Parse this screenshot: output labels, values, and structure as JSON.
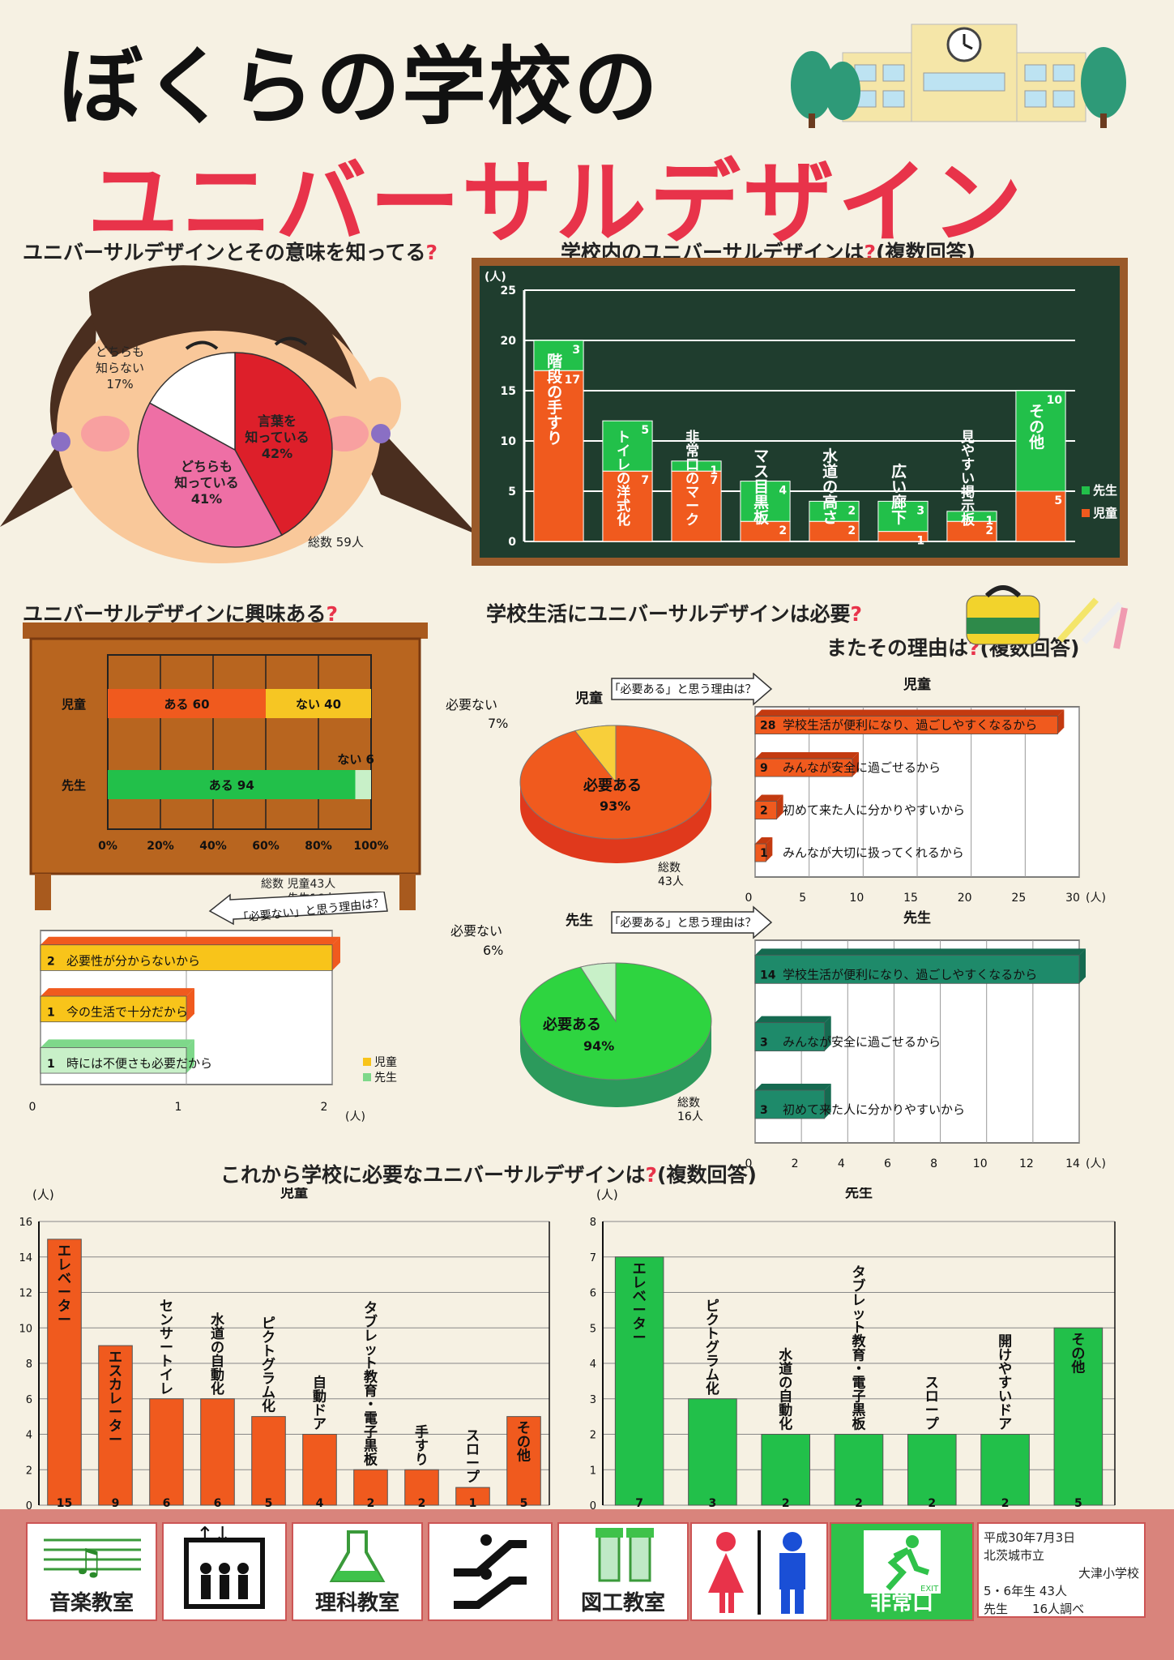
{
  "title": {
    "line1": "ぼくらの学校の",
    "line2": "ユニバーサルデザイン"
  },
  "colors": {
    "jido": "#f05a1e",
    "sensei": "#22c04a",
    "red": "#e8334a",
    "board": "#1f3d2e"
  },
  "q1": {
    "title": "ユニバーサルデザインとその意味を知ってる",
    "qmark": "?",
    "total": "総数 59人",
    "chart_data": {
      "type": "pie",
      "categories": [
        "言葉を知っている",
        "どちらも知っている",
        "どちらも知らない"
      ],
      "values": [
        42,
        41,
        17
      ],
      "labels": [
        "言葉を知っている 42%",
        "どちらも知っている 41%",
        "どちらも知らない 17%"
      ]
    },
    "slice_labels": {
      "a": "言葉を",
      "a2": "知っている",
      "a3": "42%",
      "b": "どちらも",
      "b2": "知っている",
      "b3": "41%",
      "c": "どちらも",
      "c2": "知らない",
      "c3": "17%"
    }
  },
  "q2": {
    "title": "学校内のユニバーサルデザインは",
    "qmark": "?",
    "note": "(複数回答)",
    "unit": "(人)",
    "legend": [
      "先生",
      "児童"
    ],
    "chart_data": {
      "type": "bar",
      "stacked": true,
      "categories": [
        "階段の手すり",
        "トイレの洋式化",
        "非常口のマーク",
        "マス目黒板",
        "水道の高さ",
        "広い廊下",
        "見やすい掲示板",
        "その他"
      ],
      "series": [
        {
          "name": "児童",
          "values": [
            17,
            7,
            7,
            2,
            2,
            1,
            2,
            5
          ]
        },
        {
          "name": "先生",
          "values": [
            3,
            5,
            1,
            4,
            2,
            3,
            1,
            10
          ]
        }
      ],
      "yticks": [
        "0",
        "5",
        "10",
        "15",
        "20",
        "25"
      ],
      "ylim": [
        0,
        25
      ]
    }
  },
  "q3": {
    "title": "ユニバーサルデザインに興味ある",
    "qmark": "?",
    "rows": [
      {
        "label": "児童",
        "yes": "ある 60",
        "no": "ない 40",
        "yes_v": 60
      },
      {
        "label": "先生",
        "yes": "ある 94",
        "no": "ない 6",
        "yes_v": 94
      }
    ],
    "xticks": [
      "0%",
      "20%",
      "40%",
      "60%",
      "80%",
      "100%"
    ],
    "total1": "総数 児童43人",
    "total2": "先生16人",
    "chart_data": {
      "type": "bar",
      "orientation": "horizontal",
      "stacked": true,
      "categories": [
        "児童",
        "先生"
      ],
      "series": [
        {
          "name": "ある",
          "values": [
            60,
            94
          ]
        },
        {
          "name": "ない",
          "values": [
            40,
            6
          ]
        }
      ],
      "xlim": [
        0,
        100
      ]
    }
  },
  "q4": {
    "title": "学校生活にユニバーサルデザインは必要",
    "qmark": "?",
    "title2": "またその理由は",
    "note": "(複数回答)",
    "jido_label": "児童",
    "sensei_label": "先生",
    "pie_jido": {
      "yes": "必要ある",
      "yes_v": "93%",
      "no": "必要ない",
      "no_v": "7%",
      "total1": "総数",
      "total2": "43人"
    },
    "pie_sensei": {
      "yes": "必要ある",
      "yes_v": "94%",
      "no": "必要ない",
      "no_v": "6%",
      "total1": "総数",
      "total2": "16人"
    },
    "reason_yes_title": "「必要ある」と思う理由は？",
    "reason_no_title": "「必要ない」と思う理由は？",
    "unit": "(人)",
    "jido_reasons": [
      {
        "v": "28",
        "t": "学校生活が便利になり、過ごしやすくなるから"
      },
      {
        "v": "9",
        "t": "みんなが安全に過ごせるから"
      },
      {
        "v": "2",
        "t": "初めて来た人に分かりやすいから"
      },
      {
        "v": "1",
        "t": "みんなが大切に扱ってくれるから"
      }
    ],
    "jido_xticks": [
      "0",
      "5",
      "10",
      "15",
      "20",
      "25",
      "30"
    ],
    "sensei_reasons": [
      {
        "v": "14",
        "t": "学校生活が便利になり、過ごしやすくなるから"
      },
      {
        "v": "3",
        "t": "みんなが安全に過ごせるから"
      },
      {
        "v": "3",
        "t": "初めて来た人に分かりやすいから"
      }
    ],
    "sensei_xticks": [
      "0",
      "2",
      "4",
      "6",
      "8",
      "10",
      "12",
      "14"
    ],
    "no_reasons": [
      {
        "v": "2",
        "t": "必要性が分からないから"
      },
      {
        "v": "1",
        "t": "今の生活で十分だから"
      },
      {
        "v": "1",
        "t": "時には不便さも必要だから"
      }
    ],
    "no_xticks": [
      "0",
      "1",
      "2"
    ],
    "no_legend": [
      "児童",
      "先生"
    ],
    "chart_data": [
      {
        "type": "pie",
        "name": "児童",
        "categories": [
          "必要ある",
          "必要ない"
        ],
        "values": [
          93,
          7
        ]
      },
      {
        "type": "pie",
        "name": "先生",
        "categories": [
          "必要ある",
          "必要ない"
        ],
        "values": [
          94,
          6
        ]
      },
      {
        "type": "bar",
        "orientation": "horizontal",
        "name": "児童",
        "categories": [
          "学校生活が便利になり、過ごしやすくなるから",
          "みんなが安全に過ごせるから",
          "初めて来た人に分かりやすいから",
          "みんなが大切に扱ってくれるから"
        ],
        "values": [
          28,
          9,
          2,
          1
        ],
        "xlim": [
          0,
          30
        ]
      },
      {
        "type": "bar",
        "orientation": "horizontal",
        "name": "先生",
        "categories": [
          "学校生活が便利になり、過ごしやすくなるから",
          "みんなが安全に過ごせるから",
          "初めて来た人に分かりやすいから"
        ],
        "values": [
          14,
          3,
          3
        ],
        "xlim": [
          0,
          14
        ]
      },
      {
        "type": "bar",
        "orientation": "horizontal",
        "categories": [
          "必要性が分からないから",
          "今の生活で十分だから",
          "時には不便さも必要だから"
        ],
        "values": [
          2,
          1,
          1
        ],
        "xlim": [
          0,
          2
        ]
      }
    ]
  },
  "q5": {
    "title": "これから学校に必要なユニバーサルデザインは",
    "qmark": "?",
    "note": "(複数回答)",
    "unit": "(人)",
    "jido_label": "児童",
    "sensei_label": "先生",
    "jido_yticks": [
      "0",
      "2",
      "4",
      "6",
      "8",
      "10",
      "12",
      "14",
      "16"
    ],
    "sensei_yticks": [
      "0",
      "1",
      "2",
      "3",
      "4",
      "5",
      "6",
      "7",
      "8"
    ],
    "chart_data": [
      {
        "type": "bar",
        "name": "児童",
        "categories": [
          "エレベーター",
          "エスカレーター",
          "センサートイレ",
          "水道の自動化",
          "ピクトグラム化",
          "自動ドア",
          "タブレット教育・電子黒板",
          "手すり",
          "スロープ",
          "その他"
        ],
        "values": [
          15,
          9,
          6,
          6,
          5,
          4,
          2,
          2,
          1,
          5
        ],
        "ylim": [
          0,
          16
        ]
      },
      {
        "type": "bar",
        "name": "先生",
        "categories": [
          "エレベーター",
          "ピクトグラム化",
          "水道の自動化",
          "タブレット教育・電子黒板",
          "スロープ",
          "開けやすいドア",
          "その他"
        ],
        "values": [
          7,
          3,
          2,
          2,
          2,
          2,
          5
        ],
        "ylim": [
          0,
          8
        ]
      }
    ]
  },
  "footer": {
    "labels": [
      "音楽教室",
      "理科教室",
      "図工教室",
      "非常口"
    ],
    "exit": "EXIT",
    "credit": [
      "平成30年7月3日",
      "北茨城市立",
      "大津小学校",
      "5・6年生 43人",
      "先生　　16人調べ"
    ]
  }
}
